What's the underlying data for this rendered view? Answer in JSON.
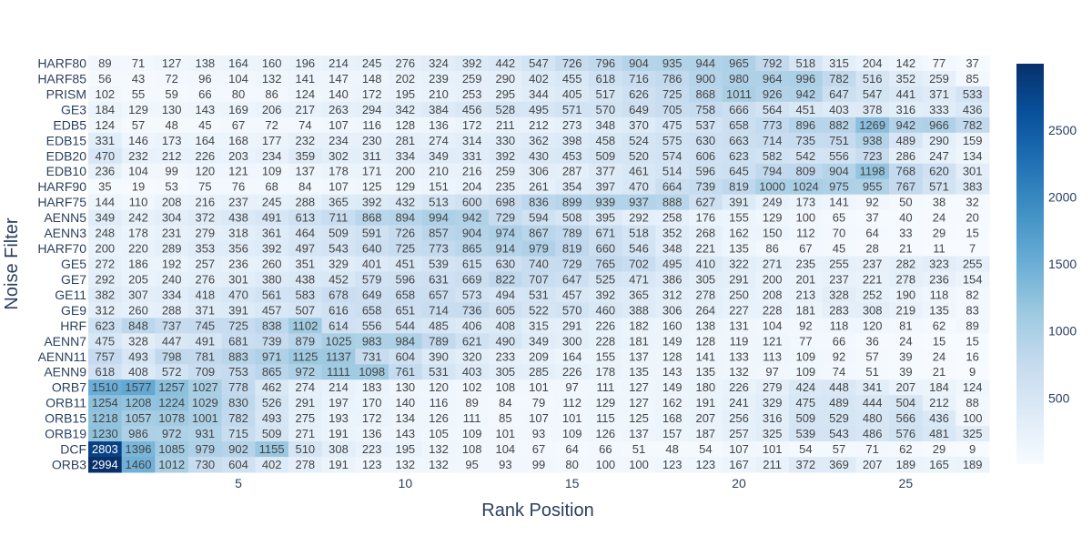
{
  "chart_data": {
    "type": "heatmap",
    "title": "",
    "xlabel": "Rank Position",
    "ylabel": "Noise Filter",
    "x": [
      1,
      2,
      3,
      4,
      5,
      6,
      7,
      8,
      9,
      10,
      11,
      12,
      13,
      14,
      15,
      16,
      17,
      18,
      19,
      20,
      21,
      22,
      23,
      24,
      25,
      26,
      27
    ],
    "x_tick_values": [
      5,
      10,
      15,
      20,
      25
    ],
    "rows": [
      "HARF80",
      "HARF85",
      "PRISM",
      "GE3",
      "EDB5",
      "EDB15",
      "EDB20",
      "EDB10",
      "HARF90",
      "HARF75",
      "AENN5",
      "AENN3",
      "HARF70",
      "GE5",
      "GE7",
      "GE11",
      "GE9",
      "HRF",
      "AENN7",
      "AENN11",
      "AENN9",
      "ORB7",
      "ORB11",
      "ORB15",
      "ORB19",
      "DCF",
      "ORB3"
    ],
    "z": [
      [
        89,
        71,
        127,
        138,
        164,
        160,
        196,
        214,
        245,
        276,
        324,
        392,
        442,
        547,
        726,
        796,
        904,
        935,
        944,
        965,
        792,
        518,
        315,
        204,
        142,
        77,
        37
      ],
      [
        56,
        43,
        72,
        96,
        104,
        132,
        141,
        147,
        148,
        202,
        239,
        259,
        290,
        402,
        455,
        618,
        716,
        786,
        900,
        980,
        964,
        996,
        782,
        516,
        352,
        259,
        85
      ],
      [
        102,
        55,
        59,
        66,
        80,
        86,
        124,
        140,
        172,
        195,
        210,
        253,
        295,
        344,
        405,
        517,
        626,
        725,
        868,
        1011,
        926,
        942,
        647,
        547,
        441,
        371,
        533
      ],
      [
        184,
        129,
        130,
        143,
        169,
        206,
        217,
        263,
        294,
        342,
        384,
        456,
        528,
        495,
        571,
        570,
        649,
        705,
        758,
        666,
        564,
        451,
        403,
        378,
        316,
        333,
        436
      ],
      [
        124,
        57,
        48,
        45,
        67,
        72,
        74,
        107,
        116,
        128,
        136,
        172,
        211,
        212,
        273,
        348,
        370,
        475,
        537,
        658,
        773,
        896,
        882,
        1269,
        942,
        966,
        782
      ],
      [
        331,
        146,
        173,
        164,
        168,
        177,
        232,
        234,
        230,
        281,
        274,
        314,
        330,
        362,
        398,
        458,
        524,
        575,
        630,
        663,
        714,
        735,
        751,
        938,
        489,
        290,
        159
      ],
      [
        470,
        232,
        212,
        226,
        203,
        234,
        359,
        302,
        311,
        334,
        349,
        331,
        392,
        430,
        453,
        509,
        520,
        574,
        606,
        623,
        582,
        542,
        556,
        723,
        286,
        247,
        134
      ],
      [
        236,
        104,
        99,
        120,
        121,
        109,
        137,
        178,
        171,
        200,
        210,
        216,
        259,
        306,
        287,
        377,
        461,
        514,
        596,
        645,
        794,
        809,
        904,
        1198,
        768,
        620,
        301
      ],
      [
        35,
        19,
        53,
        75,
        76,
        68,
        84,
        107,
        125,
        129,
        151,
        204,
        235,
        261,
        354,
        397,
        470,
        664,
        739,
        819,
        1000,
        1024,
        975,
        955,
        767,
        571,
        383
      ],
      [
        144,
        110,
        208,
        216,
        237,
        245,
        288,
        365,
        392,
        432,
        513,
        600,
        698,
        836,
        899,
        939,
        937,
        888,
        627,
        391,
        249,
        173,
        141,
        92,
        50,
        38,
        32
      ],
      [
        349,
        242,
        304,
        372,
        438,
        491,
        613,
        711,
        868,
        894,
        994,
        942,
        729,
        594,
        508,
        395,
        292,
        258,
        176,
        155,
        129,
        100,
        65,
        37,
        40,
        24,
        20
      ],
      [
        248,
        178,
        231,
        279,
        318,
        361,
        464,
        509,
        591,
        726,
        857,
        904,
        974,
        867,
        789,
        671,
        518,
        352,
        268,
        162,
        150,
        112,
        70,
        64,
        33,
        29,
        15
      ],
      [
        200,
        220,
        289,
        353,
        356,
        392,
        497,
        543,
        640,
        725,
        773,
        865,
        914,
        979,
        819,
        660,
        546,
        348,
        221,
        135,
        86,
        67,
        45,
        28,
        21,
        11,
        7
      ],
      [
        272,
        186,
        192,
        257,
        236,
        260,
        351,
        329,
        401,
        451,
        539,
        615,
        630,
        740,
        729,
        765,
        702,
        495,
        410,
        322,
        271,
        235,
        255,
        237,
        282,
        323,
        255
      ],
      [
        292,
        205,
        240,
        276,
        301,
        380,
        438,
        452,
        579,
        596,
        631,
        669,
        822,
        707,
        647,
        525,
        471,
        386,
        305,
        291,
        200,
        201,
        237,
        221,
        278,
        236,
        154
      ],
      [
        382,
        307,
        334,
        418,
        470,
        561,
        583,
        678,
        649,
        658,
        657,
        573,
        494,
        531,
        457,
        392,
        365,
        312,
        278,
        250,
        208,
        213,
        328,
        252,
        190,
        118,
        82
      ],
      [
        312,
        260,
        288,
        371,
        391,
        457,
        507,
        616,
        658,
        651,
        714,
        736,
        605,
        522,
        570,
        460,
        388,
        306,
        264,
        227,
        228,
        181,
        283,
        308,
        219,
        135,
        83
      ],
      [
        623,
        848,
        737,
        745,
        725,
        838,
        1102,
        614,
        556,
        544,
        485,
        406,
        408,
        315,
        291,
        226,
        182,
        160,
        138,
        131,
        104,
        92,
        118,
        120,
        81,
        62,
        89
      ],
      [
        475,
        328,
        447,
        491,
        681,
        739,
        879,
        1025,
        983,
        984,
        789,
        621,
        490,
        349,
        300,
        228,
        181,
        149,
        128,
        119,
        121,
        77,
        66,
        36,
        24,
        15,
        15
      ],
      [
        757,
        493,
        798,
        781,
        883,
        971,
        1125,
        1137,
        731,
        604,
        390,
        320,
        233,
        209,
        164,
        155,
        137,
        128,
        141,
        133,
        113,
        109,
        92,
        57,
        39,
        24,
        16
      ],
      [
        618,
        408,
        572,
        709,
        753,
        865,
        972,
        1111,
        1098,
        761,
        531,
        403,
        305,
        285,
        226,
        178,
        135,
        143,
        135,
        132,
        97,
        109,
        74,
        51,
        39,
        21,
        9
      ],
      [
        1510,
        1577,
        1257,
        1027,
        778,
        462,
        274,
        214,
        183,
        130,
        120,
        102,
        108,
        101,
        97,
        111,
        127,
        149,
        180,
        226,
        279,
        424,
        448,
        341,
        207,
        184,
        124
      ],
      [
        1254,
        1208,
        1224,
        1029,
        830,
        526,
        291,
        197,
        170,
        140,
        116,
        89,
        84,
        79,
        112,
        129,
        127,
        162,
        191,
        241,
        329,
        475,
        489,
        444,
        504,
        212,
        88
      ],
      [
        1218,
        1057,
        1078,
        1001,
        782,
        493,
        275,
        193,
        172,
        134,
        126,
        111,
        85,
        107,
        101,
        115,
        125,
        168,
        207,
        256,
        316,
        509,
        529,
        480,
        566,
        436,
        100
      ],
      [
        1230,
        986,
        972,
        931,
        715,
        509,
        271,
        191,
        136,
        143,
        105,
        109,
        101,
        93,
        109,
        126,
        137,
        157,
        187,
        257,
        325,
        539,
        543,
        486,
        576,
        481,
        325
      ],
      [
        2803,
        1396,
        1085,
        979,
        902,
        1155,
        510,
        308,
        223,
        195,
        132,
        108,
        104,
        67,
        64,
        66,
        51,
        48,
        54,
        107,
        101,
        54,
        57,
        71,
        62,
        29,
        9
      ],
      [
        2994,
        1460,
        1012,
        730,
        604,
        402,
        278,
        191,
        123,
        132,
        132,
        95,
        93,
        99,
        80,
        100,
        100,
        123,
        123,
        167,
        211,
        372,
        369,
        207,
        189,
        165,
        189
      ]
    ],
    "zmin": 7,
    "zmax": 2994,
    "colorscale": "Blues",
    "colorbar_ticks": [
      500,
      1000,
      1500,
      2000,
      2500
    ],
    "grid": false
  }
}
